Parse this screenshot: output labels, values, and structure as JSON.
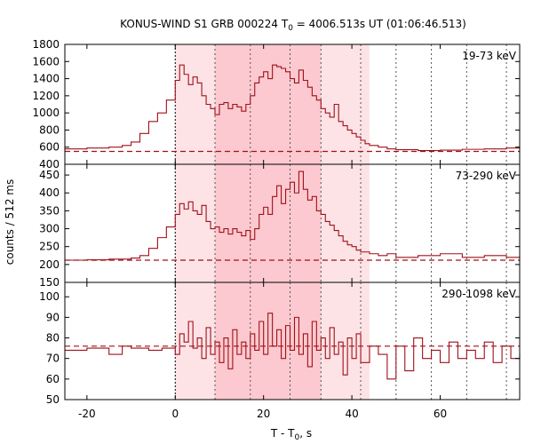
{
  "chart_data": {
    "type": "line",
    "title": "KONUS-WIND S1 GRB 000224 T",
    "title_sub": "0",
    "title_rest": " = 4006.513s UT (01:06:46.513)",
    "xlabel": "T - T",
    "xlabel_sub": "0",
    "xlabel_rest": ", s",
    "ylabel": "counts / 512 ms",
    "xlim": [
      -25,
      78
    ],
    "x_ticks": [
      -20,
      0,
      20,
      40,
      60
    ],
    "x_tick_labels": [
      "-20",
      "0",
      "20",
      "40",
      "60"
    ],
    "shaded_regions": [
      {
        "x0": 0,
        "x1": 44,
        "color": "#fde3e6"
      },
      {
        "x0": 9,
        "x1": 33,
        "color": "#fbc9cf"
      }
    ],
    "vertical_lines": [
      0,
      9,
      17,
      26,
      33,
      42,
      50,
      58,
      66,
      75
    ],
    "line_color": "#a0101a",
    "panels": [
      {
        "name": "19-73 keV",
        "ylim": [
          400,
          1800
        ],
        "y_ticks": [
          400,
          600,
          800,
          1000,
          1200,
          1400,
          1600,
          1800
        ],
        "y_tick_labels": [
          "400",
          "600",
          "800",
          "1000",
          "1200",
          "1400",
          "1600",
          "1800"
        ],
        "background": 550,
        "points": [
          [
            -25,
            580
          ],
          [
            -20,
            590
          ],
          [
            -15,
            600
          ],
          [
            -12,
            620
          ],
          [
            -10,
            660
          ],
          [
            -8,
            760
          ],
          [
            -6,
            900
          ],
          [
            -4,
            1000
          ],
          [
            -2,
            1150
          ],
          [
            0,
            1380
          ],
          [
            1,
            1560
          ],
          [
            2,
            1450
          ],
          [
            3,
            1330
          ],
          [
            4,
            1420
          ],
          [
            5,
            1350
          ],
          [
            6,
            1200
          ],
          [
            7,
            1100
          ],
          [
            8,
            1050
          ],
          [
            9,
            980
          ],
          [
            10,
            1100
          ],
          [
            11,
            1120
          ],
          [
            12,
            1050
          ],
          [
            13,
            1100
          ],
          [
            14,
            1070
          ],
          [
            15,
            1020
          ],
          [
            16,
            1100
          ],
          [
            17,
            1200
          ],
          [
            18,
            1350
          ],
          [
            19,
            1420
          ],
          [
            20,
            1480
          ],
          [
            21,
            1400
          ],
          [
            22,
            1560
          ],
          [
            23,
            1540
          ],
          [
            24,
            1520
          ],
          [
            25,
            1480
          ],
          [
            26,
            1400
          ],
          [
            27,
            1350
          ],
          [
            28,
            1500
          ],
          [
            29,
            1380
          ],
          [
            30,
            1300
          ],
          [
            31,
            1200
          ],
          [
            32,
            1150
          ],
          [
            33,
            1050
          ],
          [
            34,
            1000
          ],
          [
            35,
            950
          ],
          [
            36,
            1100
          ],
          [
            37,
            900
          ],
          [
            38,
            850
          ],
          [
            39,
            800
          ],
          [
            40,
            760
          ],
          [
            41,
            720
          ],
          [
            42,
            680
          ],
          [
            43,
            640
          ],
          [
            44,
            620
          ],
          [
            46,
            600
          ],
          [
            48,
            580
          ],
          [
            50,
            570
          ],
          [
            55,
            560
          ],
          [
            60,
            565
          ],
          [
            65,
            575
          ],
          [
            70,
            580
          ],
          [
            75,
            590
          ],
          [
            78,
            600
          ]
        ]
      },
      {
        "name": "73-290 keV",
        "ylim": [
          150,
          480
        ],
        "y_ticks": [
          150,
          200,
          250,
          300,
          350,
          400,
          450
        ],
        "y_tick_labels": [
          "150",
          "200",
          "250",
          "300",
          "350",
          "400",
          "450"
        ],
        "background": 212,
        "points": [
          [
            -25,
            212
          ],
          [
            -20,
            213
          ],
          [
            -15,
            215
          ],
          [
            -10,
            218
          ],
          [
            -8,
            225
          ],
          [
            -6,
            245
          ],
          [
            -4,
            275
          ],
          [
            -2,
            305
          ],
          [
            0,
            340
          ],
          [
            1,
            370
          ],
          [
            2,
            355
          ],
          [
            3,
            375
          ],
          [
            4,
            350
          ],
          [
            5,
            340
          ],
          [
            6,
            365
          ],
          [
            7,
            320
          ],
          [
            8,
            300
          ],
          [
            9,
            305
          ],
          [
            10,
            290
          ],
          [
            11,
            300
          ],
          [
            12,
            285
          ],
          [
            13,
            300
          ],
          [
            14,
            290
          ],
          [
            15,
            280
          ],
          [
            16,
            295
          ],
          [
            17,
            270
          ],
          [
            18,
            300
          ],
          [
            19,
            340
          ],
          [
            20,
            360
          ],
          [
            21,
            340
          ],
          [
            22,
            390
          ],
          [
            23,
            420
          ],
          [
            24,
            370
          ],
          [
            25,
            410
          ],
          [
            26,
            430
          ],
          [
            27,
            400
          ],
          [
            28,
            460
          ],
          [
            29,
            410
          ],
          [
            30,
            380
          ],
          [
            31,
            390
          ],
          [
            32,
            350
          ],
          [
            33,
            340
          ],
          [
            34,
            320
          ],
          [
            35,
            310
          ],
          [
            36,
            295
          ],
          [
            37,
            280
          ],
          [
            38,
            265
          ],
          [
            39,
            255
          ],
          [
            40,
            250
          ],
          [
            41,
            240
          ],
          [
            42,
            235
          ],
          [
            44,
            230
          ],
          [
            46,
            225
          ],
          [
            48,
            230
          ],
          [
            50,
            220
          ],
          [
            55,
            225
          ],
          [
            60,
            230
          ],
          [
            65,
            220
          ],
          [
            70,
            225
          ],
          [
            75,
            220
          ],
          [
            78,
            225
          ]
        ]
      },
      {
        "name": "290-1098 keV",
        "ylim": [
          50,
          107
        ],
        "y_ticks": [
          50,
          60,
          70,
          80,
          90,
          100
        ],
        "y_tick_labels": [
          "50",
          "60",
          "70",
          "80",
          "90",
          "100"
        ],
        "background": 76,
        "points": [
          [
            -25,
            74
          ],
          [
            -20,
            75
          ],
          [
            -15,
            72
          ],
          [
            -12,
            76
          ],
          [
            -10,
            75
          ],
          [
            -6,
            74
          ],
          [
            -3,
            75
          ],
          [
            0,
            72
          ],
          [
            1,
            82
          ],
          [
            2,
            78
          ],
          [
            3,
            88
          ],
          [
            4,
            75
          ],
          [
            5,
            80
          ],
          [
            6,
            70
          ],
          [
            7,
            85
          ],
          [
            8,
            72
          ],
          [
            9,
            78
          ],
          [
            10,
            68
          ],
          [
            11,
            80
          ],
          [
            12,
            65
          ],
          [
            13,
            84
          ],
          [
            14,
            72
          ],
          [
            15,
            78
          ],
          [
            16,
            70
          ],
          [
            17,
            82
          ],
          [
            18,
            74
          ],
          [
            19,
            88
          ],
          [
            20,
            72
          ],
          [
            21,
            92
          ],
          [
            22,
            76
          ],
          [
            23,
            84
          ],
          [
            24,
            70
          ],
          [
            25,
            86
          ],
          [
            26,
            74
          ],
          [
            27,
            90
          ],
          [
            28,
            72
          ],
          [
            29,
            82
          ],
          [
            30,
            66
          ],
          [
            31,
            88
          ],
          [
            32,
            74
          ],
          [
            33,
            80
          ],
          [
            34,
            70
          ],
          [
            35,
            85
          ],
          [
            36,
            72
          ],
          [
            37,
            78
          ],
          [
            38,
            62
          ],
          [
            39,
            80
          ],
          [
            40,
            70
          ],
          [
            41,
            82
          ],
          [
            42,
            68
          ],
          [
            44,
            76
          ],
          [
            46,
            72
          ],
          [
            48,
            60
          ],
          [
            50,
            76
          ],
          [
            52,
            64
          ],
          [
            54,
            80
          ],
          [
            56,
            70
          ],
          [
            58,
            74
          ],
          [
            60,
            68
          ],
          [
            62,
            78
          ],
          [
            64,
            70
          ],
          [
            66,
            74
          ],
          [
            68,
            70
          ],
          [
            70,
            78
          ],
          [
            72,
            68
          ],
          [
            74,
            76
          ],
          [
            76,
            70
          ],
          [
            78,
            72
          ]
        ]
      }
    ]
  }
}
